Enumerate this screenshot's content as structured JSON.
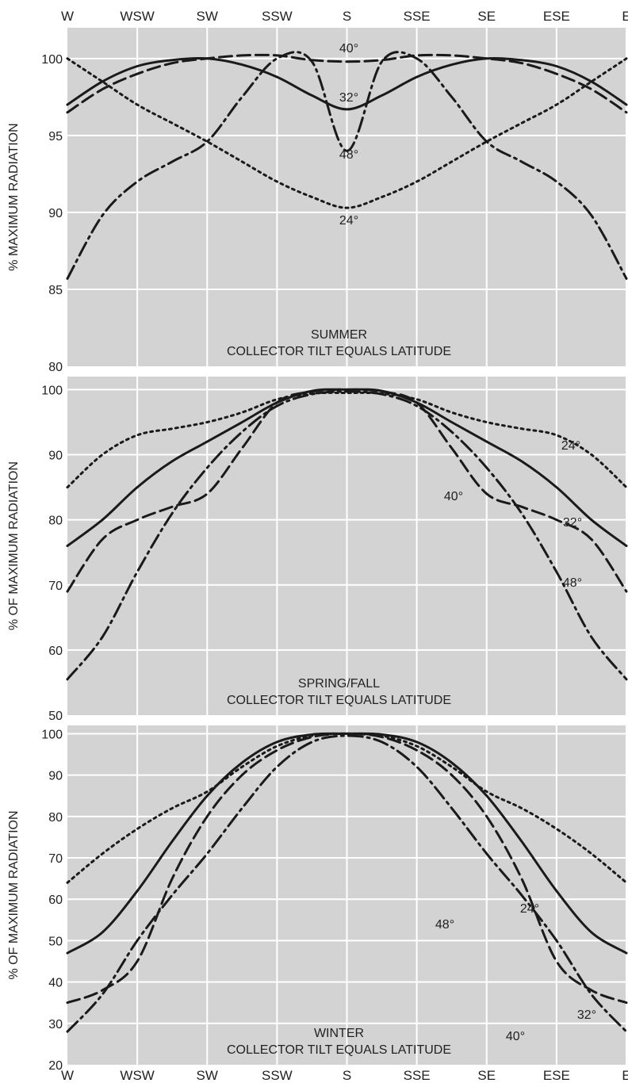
{
  "chart_data": [
    {
      "type": "line",
      "title": "SUMMER",
      "subtitle": "COLLECTOR TILT EQUALS LATITUDE",
      "xlabel": "",
      "ylabel": "% MAXIMUM RADIATION",
      "ylim": [
        80,
        102
      ],
      "yticks": [
        100,
        95,
        90,
        85,
        80
      ],
      "categories": [
        "W",
        "WSW",
        "SW",
        "SSW",
        "S",
        "SSE",
        "SE",
        "ESE",
        "E"
      ],
      "grid": true,
      "series": [
        {
          "name": "24°",
          "style": "dotted",
          "x": [
            0,
            0.5,
            1,
            1.5,
            2,
            2.5,
            3,
            3.5,
            4,
            4.5,
            5,
            5.5,
            6,
            6.5,
            7,
            7.5,
            8
          ],
          "values": [
            100,
            98.5,
            97,
            95.8,
            94.6,
            93.3,
            92,
            91,
            90.3,
            91,
            92,
            93.3,
            94.6,
            95.8,
            97,
            98.5,
            100
          ]
        },
        {
          "name": "32°",
          "style": "solid",
          "x": [
            0,
            0.5,
            1,
            1.5,
            2,
            2.5,
            3,
            3.5,
            4,
            4.5,
            5,
            5.5,
            6,
            6.5,
            7,
            7.5,
            8
          ],
          "values": [
            97,
            98.5,
            99.5,
            99.9,
            100,
            99.6,
            98.8,
            97.6,
            96.7,
            97.6,
            98.8,
            99.6,
            100,
            99.9,
            99.5,
            98.5,
            97
          ]
        },
        {
          "name": "40°",
          "style": "dashed",
          "x": [
            0,
            0.5,
            1,
            1.5,
            2,
            2.5,
            3,
            3.5,
            4,
            4.5,
            5,
            5.5,
            6,
            6.5,
            7,
            7.5,
            8
          ],
          "values": [
            96.5,
            98,
            99,
            99.7,
            100,
            100.2,
            100.2,
            99.9,
            99.8,
            99.9,
            100.2,
            100.2,
            100,
            99.7,
            99,
            98,
            96.5
          ]
        },
        {
          "name": "48°",
          "style": "dash-dot",
          "x": [
            0,
            0.5,
            1,
            1.5,
            2,
            2.5,
            3,
            3.5,
            4,
            4.5,
            5,
            5.5,
            6,
            6.5,
            7,
            7.5,
            8
          ],
          "values": [
            85.7,
            89.8,
            92,
            93.3,
            94.6,
            97.5,
            100,
            99.8,
            94,
            99.8,
            100,
            97.5,
            94.6,
            93.3,
            92,
            89.8,
            85.7
          ]
        }
      ],
      "annotations": [
        "40°",
        "32°",
        "48°",
        "24°"
      ]
    },
    {
      "type": "line",
      "title": "SPRING/FALL",
      "subtitle": "COLLECTOR TILT EQUALS LATITUDE",
      "xlabel": "",
      "ylabel": "% OF MAXIMUM RADIATION",
      "ylim": [
        50,
        102
      ],
      "yticks": [
        100,
        90,
        80,
        70,
        60,
        50
      ],
      "categories": [
        "W",
        "WSW",
        "SW",
        "SSW",
        "S",
        "SSE",
        "SE",
        "ESE",
        "E"
      ],
      "grid": true,
      "series": [
        {
          "name": "24°",
          "style": "dotted",
          "x": [
            0,
            0.5,
            1,
            1.5,
            2,
            2.5,
            3,
            3.5,
            4,
            4.5,
            5,
            5.5,
            6,
            6.5,
            7,
            7.5,
            8
          ],
          "values": [
            85,
            90,
            93,
            94,
            95,
            96.5,
            98.5,
            99.4,
            99.5,
            99.4,
            98.5,
            96.5,
            95,
            94,
            93,
            90,
            85
          ]
        },
        {
          "name": "32°",
          "style": "solid",
          "x": [
            0,
            0.5,
            1,
            1.5,
            2,
            2.5,
            3,
            3.5,
            4,
            4.5,
            5,
            5.5,
            6,
            6.5,
            7,
            7.5,
            8
          ],
          "values": [
            76,
            80,
            85,
            89,
            92,
            95,
            98,
            99.8,
            100,
            99.8,
            98,
            95,
            92,
            89,
            85,
            80,
            76
          ]
        },
        {
          "name": "40°",
          "style": "dashed",
          "x": [
            0,
            0.5,
            1,
            1.5,
            2,
            2.5,
            3,
            3.5,
            4,
            4.5,
            5,
            5.5,
            6,
            6.5,
            7,
            7.5,
            8
          ],
          "values": [
            69,
            77,
            80,
            82,
            84,
            91,
            98,
            99.7,
            100,
            99.7,
            98,
            91,
            84,
            82,
            80,
            77,
            69
          ]
        },
        {
          "name": "48°",
          "style": "dash-dot",
          "x": [
            0,
            0.5,
            1,
            1.5,
            2,
            2.5,
            3,
            3.5,
            4,
            4.5,
            5,
            5.5,
            6,
            6.5,
            7,
            7.5,
            8
          ],
          "values": [
            55.5,
            62,
            72,
            81,
            88,
            93.5,
            97.5,
            99.3,
            99.7,
            99.3,
            97.5,
            93.5,
            88,
            81,
            72,
            62,
            55.5
          ]
        }
      ],
      "annotations": [
        "24°",
        "40°",
        "32°",
        "48°"
      ]
    },
    {
      "type": "line",
      "title": "WINTER",
      "subtitle": "COLLECTOR TILT EQUALS LATITUDE",
      "xlabel": "",
      "ylabel": "% OF MAXIMUM RADIATION",
      "ylim": [
        20,
        102
      ],
      "yticks": [
        100,
        90,
        80,
        70,
        60,
        50,
        40,
        30,
        20
      ],
      "categories": [
        "W",
        "WSW",
        "SW",
        "SSW",
        "S",
        "SSE",
        "SE",
        "ESE",
        "E"
      ],
      "grid": true,
      "series": [
        {
          "name": "24°",
          "style": "dotted",
          "x": [
            0,
            0.5,
            1,
            1.5,
            2,
            2.5,
            3,
            3.5,
            4,
            4.5,
            5,
            5.5,
            6,
            6.5,
            7,
            7.5,
            8
          ],
          "values": [
            64,
            71,
            77,
            82,
            86,
            92,
            97,
            99.5,
            100,
            99.5,
            97,
            92,
            86,
            82,
            77,
            71,
            64
          ]
        },
        {
          "name": "32°",
          "style": "solid",
          "x": [
            0,
            0.5,
            1,
            1.5,
            2,
            2.5,
            3,
            3.5,
            4,
            4.5,
            5,
            5.5,
            6,
            6.5,
            7,
            7.5,
            8
          ],
          "values": [
            47,
            52,
            62,
            74,
            85,
            93,
            98,
            99.8,
            100,
            99.8,
            98,
            93,
            85,
            74,
            62,
            52,
            47
          ]
        },
        {
          "name": "40°",
          "style": "dashed",
          "x": [
            0,
            0.5,
            1,
            1.5,
            2,
            2.5,
            3,
            3.5,
            4,
            4.5,
            5,
            5.5,
            6,
            6.5,
            7,
            7.5,
            8
          ],
          "values": [
            35,
            38,
            45,
            65,
            80,
            90,
            96,
            99.2,
            100,
            99.2,
            96,
            90,
            80,
            65,
            45,
            38,
            35
          ]
        },
        {
          "name": "48°",
          "style": "dash-dot",
          "x": [
            0,
            0.5,
            1,
            1.5,
            2,
            2.5,
            3,
            3.5,
            4,
            4.5,
            5,
            5.5,
            6,
            6.5,
            7,
            7.5,
            8
          ],
          "values": [
            28,
            37,
            50,
            61,
            71,
            82,
            92,
            98,
            99.5,
            98,
            92,
            82,
            71,
            61,
            50,
            37,
            28
          ]
        }
      ],
      "annotations": [
        "24°",
        "48°",
        "32°",
        "40°"
      ]
    }
  ]
}
